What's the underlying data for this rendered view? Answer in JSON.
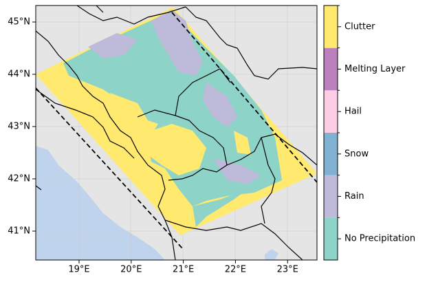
{
  "map": {
    "lat_ticks": [
      "41°N",
      "42°N",
      "43°N",
      "44°N",
      "45°N"
    ],
    "lon_ticks": [
      "19°E",
      "20°E",
      "21°E",
      "22°E",
      "23°E"
    ],
    "legend": [
      {
        "label": "No Precipitation",
        "color": "#8dd3c7"
      },
      {
        "label": "Rain",
        "color": "#bebada"
      },
      {
        "label": "Snow",
        "color": "#80b1d3"
      },
      {
        "label": "Hail",
        "color": "#fccde5"
      },
      {
        "label": "Melting Layer",
        "color": "#bc80bd"
      },
      {
        "label": "Clutter",
        "color": "#ffe96f"
      }
    ]
  }
}
